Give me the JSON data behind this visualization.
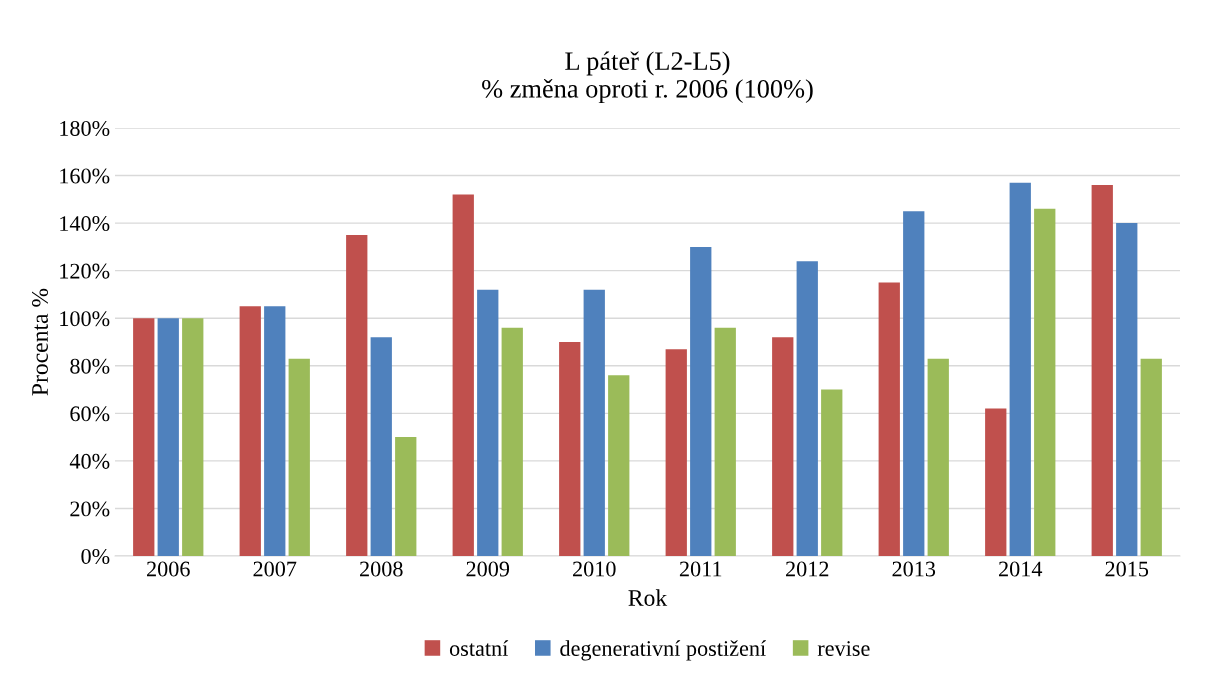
{
  "chart_data": {
    "type": "bar",
    "title": "L páteř (L2-L5)\n% změna oproti r. 2006 (100%)",
    "xlabel": "Rok",
    "ylabel": "Procenta %",
    "categories": [
      "2006",
      "2007",
      "2008",
      "2009",
      "2010",
      "2011",
      "2012",
      "2013",
      "2014",
      "2015"
    ],
    "series": [
      {
        "name": "ostatní",
        "color": "#c0504d",
        "values": [
          100,
          105,
          135,
          152,
          90,
          87,
          92,
          115,
          62,
          156
        ]
      },
      {
        "name": "degenerativní postižení",
        "color": "#4f81bd",
        "values": [
          100,
          105,
          92,
          112,
          112,
          130,
          124,
          145,
          157,
          140
        ]
      },
      {
        "name": "revise",
        "color": "#9bbb59",
        "values": [
          100,
          83,
          50,
          96,
          76,
          96,
          70,
          83,
          146,
          83
        ]
      }
    ],
    "ylim": [
      0,
      180
    ],
    "yticks": [
      {
        "value": 0,
        "label": "0%"
      },
      {
        "value": 20,
        "label": "20%"
      },
      {
        "value": 40,
        "label": "40%"
      },
      {
        "value": 60,
        "label": "60%"
      },
      {
        "value": 80,
        "label": "80%"
      },
      {
        "value": 100,
        "label": "100%"
      },
      {
        "value": 120,
        "label": "120%"
      },
      {
        "value": 140,
        "label": "140%"
      },
      {
        "value": 160,
        "label": "160%"
      },
      {
        "value": 180,
        "label": "180%"
      }
    ],
    "grid": "y",
    "legend": "bottom"
  }
}
